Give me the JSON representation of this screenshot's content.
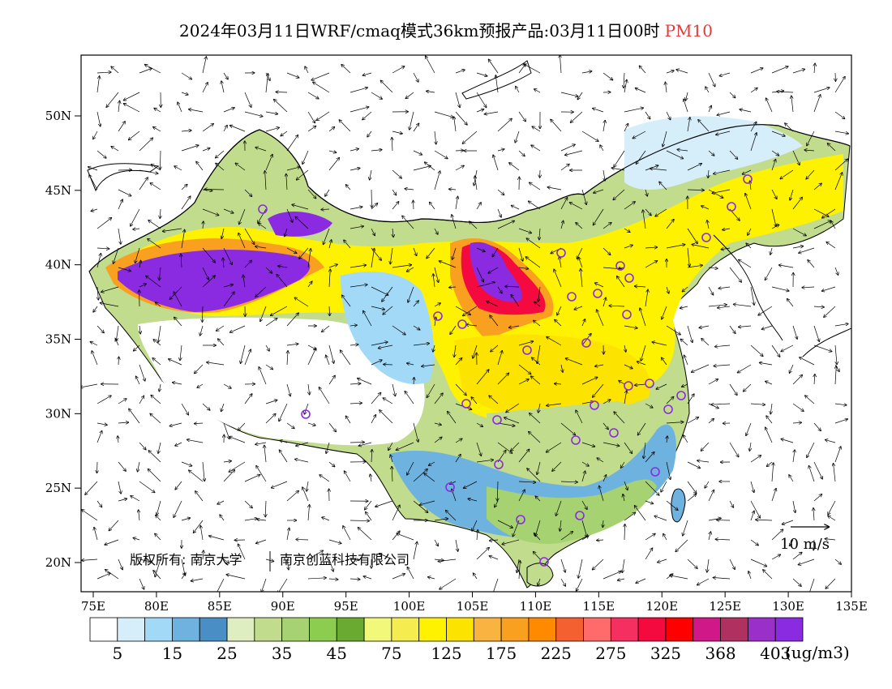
{
  "title": {
    "text": "2024年03月11日WRF/cmaq模式36km预报产品:03月11日00时",
    "species": "PM10",
    "species_color": "#e23a3a"
  },
  "map": {
    "lat_labels": [
      "50N",
      "45N",
      "40N",
      "35N",
      "30N",
      "25N",
      "20N"
    ],
    "lat_values": [
      50,
      45,
      40,
      35,
      30,
      25,
      20
    ],
    "lon_labels": [
      "75E",
      "80E",
      "85E",
      "90E",
      "95E",
      "100E",
      "105E",
      "110E",
      "115E",
      "120E",
      "125E",
      "130E",
      "135E"
    ],
    "lon_values": [
      75,
      80,
      85,
      90,
      95,
      100,
      105,
      110,
      115,
      120,
      125,
      130,
      135
    ],
    "copyright": "版权所有: 南京大学",
    "copyright_company": "南京创蓝科技有限公司",
    "vector_reference": "10 m/s",
    "station_marker_color": "#8a2be2"
  },
  "colorbar": {
    "colors": [
      "#ffffff",
      "#d6eefa",
      "#a2d9f6",
      "#6eb3e0",
      "#4a8ec6",
      "#dfeec0",
      "#c1dc8c",
      "#a6d272",
      "#8ccd50",
      "#6aaa30",
      "#f2f87a",
      "#f5ec50",
      "#fff200",
      "#fde400",
      "#f9b340",
      "#f9a020",
      "#ff8a00",
      "#f56030",
      "#ff6b6b",
      "#f53060",
      "#f50a40",
      "#ff0000",
      "#d01888",
      "#b03060",
      "#9a30c8",
      "#8a2be2"
    ],
    "labels": [
      "5",
      "15",
      "25",
      "35",
      "45",
      "75",
      "125",
      "175",
      "225",
      "275",
      "325",
      "368",
      "403"
    ],
    "units": "(ug/m3)"
  }
}
